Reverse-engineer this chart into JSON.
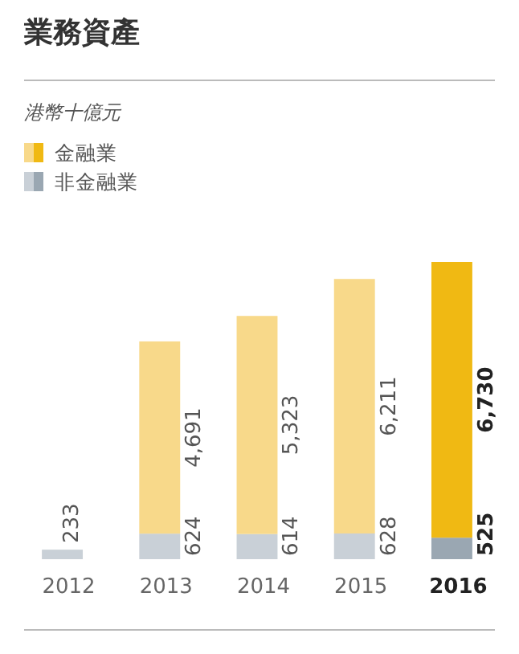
{
  "chart_data": {
    "type": "bar",
    "title": "業務資產",
    "subtitle": "港幣十億元",
    "categories": [
      "2012",
      "2013",
      "2014",
      "2015",
      "2016"
    ],
    "stacked": true,
    "legend": "top left",
    "series": [
      {
        "name": "非金融業",
        "color": "#c9d0d7",
        "colors": [
          "#c9d0d7",
          "#c9d0d7",
          "#c9d0d7",
          "#c9d0d7",
          "#9aa7b2"
        ],
        "values": [
          233,
          624,
          614,
          628,
          525
        ],
        "value_labels": [
          "233",
          "624",
          "614",
          "628",
          "525"
        ]
      },
      {
        "name": "金融業",
        "color": "#f8d98a",
        "colors": [
          null,
          "#f8d98a",
          "#f8d98a",
          "#f8d98a",
          "#f0b913"
        ],
        "values": [
          null,
          4691,
          5323,
          6211,
          6730
        ],
        "value_labels": [
          null,
          "4,691",
          "5,323",
          "6,211",
          "6,730"
        ]
      }
    ]
  }
}
